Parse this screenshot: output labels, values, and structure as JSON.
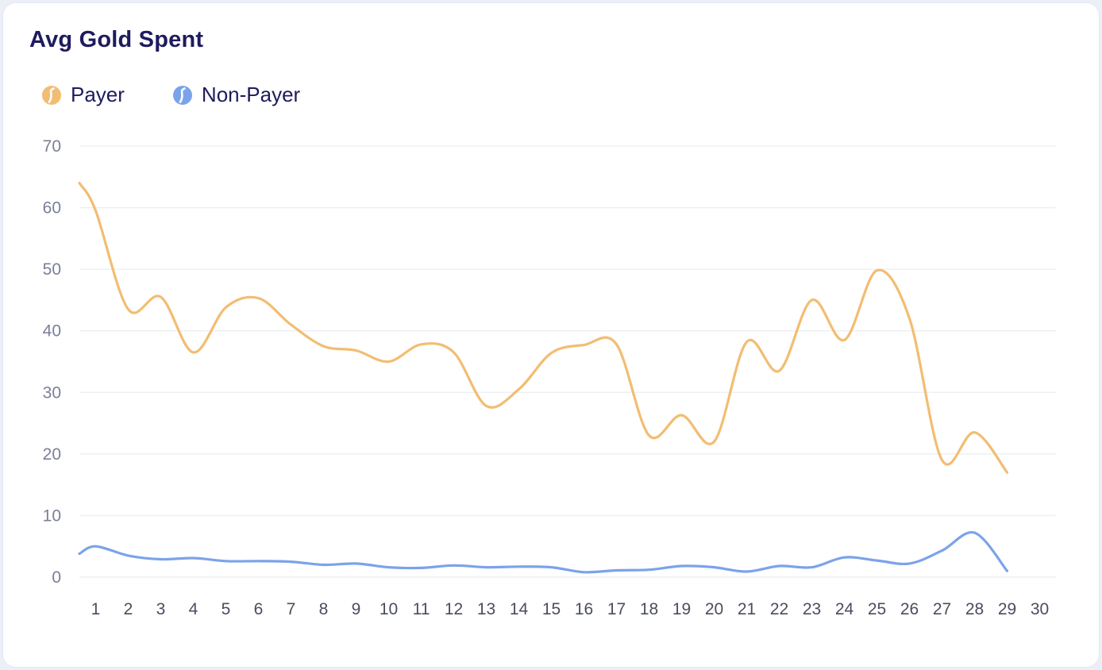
{
  "chart_data": {
    "type": "line",
    "title": "Avg Gold Spent",
    "xlabel": "",
    "ylabel": "",
    "x_ticks": [
      "1",
      "2",
      "3",
      "4",
      "5",
      "6",
      "7",
      "8",
      "9",
      "10",
      "11",
      "12",
      "13",
      "14",
      "15",
      "16",
      "17",
      "18",
      "19",
      "20",
      "21",
      "22",
      "23",
      "24",
      "25",
      "26",
      "27",
      "28",
      "29",
      "30"
    ],
    "x_range": [
      0.5,
      30.5
    ],
    "ylim": [
      0,
      70
    ],
    "y_ticks": [
      "0",
      "10",
      "20",
      "30",
      "40",
      "50",
      "60",
      "70"
    ],
    "grid": true,
    "legend_position": "top-left",
    "series": [
      {
        "name": "Payer",
        "color": "#f2bd72",
        "points": [
          [
            0.5,
            64
          ],
          [
            1,
            59.5
          ],
          [
            2,
            43.5
          ],
          [
            3,
            45.5
          ],
          [
            4,
            36.5
          ],
          [
            5,
            43.8
          ],
          [
            6,
            45.3
          ],
          [
            7,
            41
          ],
          [
            8,
            37.5
          ],
          [
            9,
            36.8
          ],
          [
            10,
            35
          ],
          [
            11,
            37.8
          ],
          [
            12,
            36.5
          ],
          [
            13,
            27.8
          ],
          [
            14,
            30.5
          ],
          [
            15,
            36.4
          ],
          [
            16,
            37.7
          ],
          [
            17,
            37.8
          ],
          [
            18,
            23
          ],
          [
            19,
            26.3
          ],
          [
            20,
            22
          ],
          [
            21,
            38.2
          ],
          [
            22,
            33.5
          ],
          [
            23,
            45
          ],
          [
            24,
            38.5
          ],
          [
            25,
            49.8
          ],
          [
            26,
            42
          ],
          [
            27,
            19
          ],
          [
            28,
            23.5
          ],
          [
            29,
            17
          ]
        ]
      },
      {
        "name": "Non-Payer",
        "color": "#7ba3ea",
        "points": [
          [
            0.5,
            3.8
          ],
          [
            1,
            5
          ],
          [
            2,
            3.5
          ],
          [
            3,
            2.9
          ],
          [
            4,
            3.1
          ],
          [
            5,
            2.6
          ],
          [
            6,
            2.6
          ],
          [
            7,
            2.5
          ],
          [
            8,
            2
          ],
          [
            9,
            2.2
          ],
          [
            10,
            1.6
          ],
          [
            11,
            1.5
          ],
          [
            12,
            1.9
          ],
          [
            13,
            1.6
          ],
          [
            14,
            1.7
          ],
          [
            15,
            1.6
          ],
          [
            16,
            0.8
          ],
          [
            17,
            1.1
          ],
          [
            18,
            1.2
          ],
          [
            19,
            1.8
          ],
          [
            20,
            1.6
          ],
          [
            21,
            0.9
          ],
          [
            22,
            1.8
          ],
          [
            23,
            1.6
          ],
          [
            24,
            3.2
          ],
          [
            25,
            2.7
          ],
          [
            26,
            2.2
          ],
          [
            27,
            4.3
          ],
          [
            28,
            7.2
          ],
          [
            29,
            1
          ]
        ]
      }
    ]
  },
  "legend": {
    "payer_label": "Payer",
    "non_payer_label": "Non-Payer",
    "payer_icon": "payer-icon",
    "non_payer_icon": "non-payer-icon"
  }
}
